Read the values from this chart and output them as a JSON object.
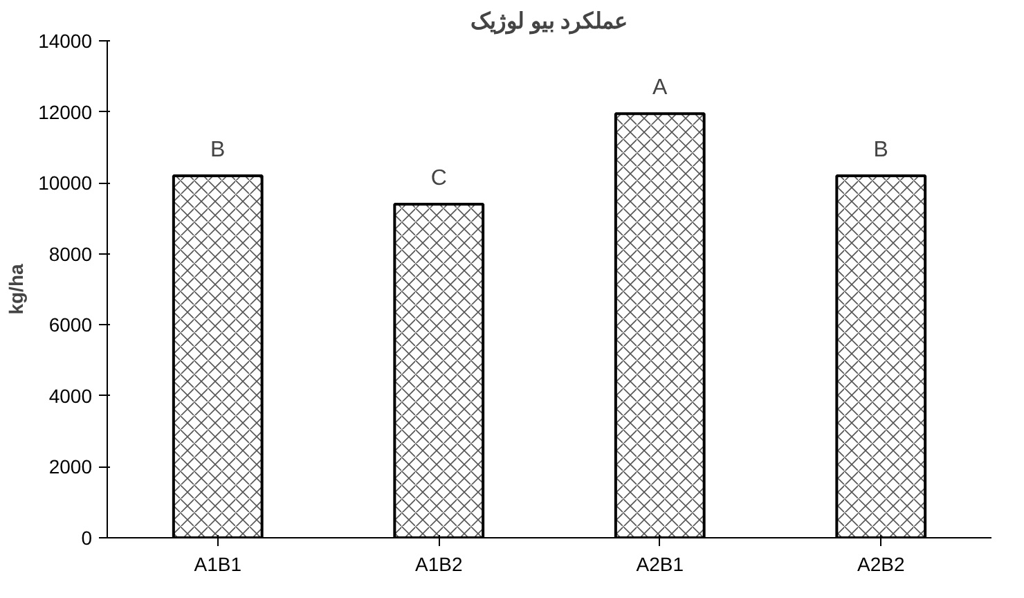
{
  "chart_data": {
    "type": "bar",
    "title": "عملکرد بیو لوژیک",
    "ylabel": "kg/ha",
    "categories": [
      "A1B1",
      "A1B2",
      "A2B1",
      "A2B2"
    ],
    "values": [
      10200,
      9400,
      11950,
      10200
    ],
    "color": "#ffffff",
    "ylim": [
      0,
      14000
    ],
    "yticks": [
      0,
      2000,
      4000,
      6000,
      8000,
      10000,
      12000,
      14000
    ],
    "grid": false,
    "annotations": [
      {
        "text": "B",
        "x": "A1B1",
        "y": 10200
      },
      {
        "text": "C",
        "x": "A1B2",
        "y": 9400
      },
      {
        "text": "A",
        "x": "A2B1",
        "y": 11950
      },
      {
        "text": "B",
        "x": "A2B2",
        "y": 10200
      }
    ]
  }
}
